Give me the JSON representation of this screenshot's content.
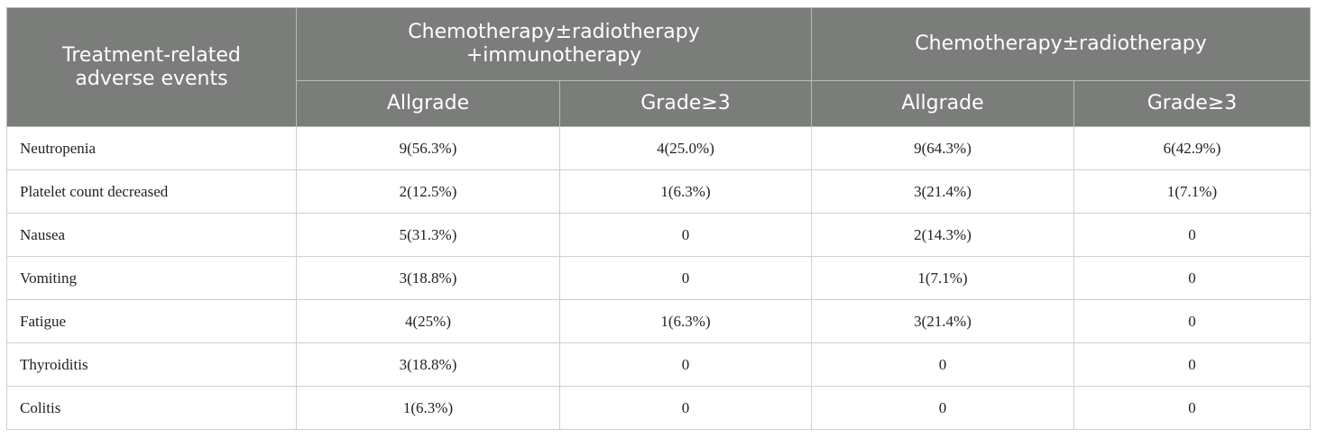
{
  "table": {
    "header": {
      "row_label": "Treatment-related adverse events",
      "groups": [
        "Chemotherapy±radiotherapy +immunotherapy",
        "Chemotherapy±radiotherapy"
      ],
      "subheaders": [
        "Allgrade",
        "Grade≥3",
        "Allgrade",
        "Grade≥3"
      ]
    },
    "rows": [
      [
        "Neutropenia",
        "9(56.3%)",
        "4(25.0%)",
        "9(64.3%)",
        "6(42.9%)"
      ],
      [
        "Platelet count decreased",
        "2(12.5%)",
        "1(6.3%)",
        "3(21.4%)",
        "1(7.1%)"
      ],
      [
        "Nausea",
        "5(31.3%)",
        "0",
        "2(14.3%)",
        "0"
      ],
      [
        "Vomiting",
        "3(18.8%)",
        "0",
        "1(7.1%)",
        "0"
      ],
      [
        "Fatigue",
        "4(25%)",
        "1(6.3%)",
        "3(21.4%)",
        "0"
      ],
      [
        "Thyroiditis",
        "3(18.8%)",
        "0",
        "0",
        "0"
      ],
      [
        "Colitis",
        "1(6.3%)",
        "0",
        "0",
        "0"
      ]
    ]
  }
}
